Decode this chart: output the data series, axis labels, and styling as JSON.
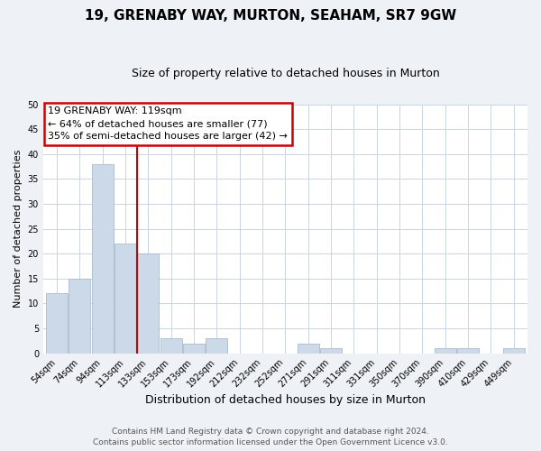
{
  "title": "19, GRENABY WAY, MURTON, SEAHAM, SR7 9GW",
  "subtitle": "Size of property relative to detached houses in Murton",
  "xlabel": "Distribution of detached houses by size in Murton",
  "ylabel": "Number of detached properties",
  "bar_labels": [
    "54sqm",
    "74sqm",
    "94sqm",
    "113sqm",
    "133sqm",
    "153sqm",
    "173sqm",
    "192sqm",
    "212sqm",
    "232sqm",
    "252sqm",
    "271sqm",
    "291sqm",
    "311sqm",
    "331sqm",
    "350sqm",
    "370sqm",
    "390sqm",
    "410sqm",
    "429sqm",
    "449sqm"
  ],
  "bar_values": [
    12,
    15,
    38,
    22,
    20,
    3,
    2,
    3,
    0,
    0,
    0,
    2,
    1,
    0,
    0,
    0,
    0,
    1,
    1,
    0,
    1
  ],
  "bar_color": "#ccd9e8",
  "bar_edge_color": "#aabccc",
  "vline_color": "#cc0000",
  "vline_x_index": 3.5,
  "ylim": [
    0,
    50
  ],
  "yticks": [
    0,
    5,
    10,
    15,
    20,
    25,
    30,
    35,
    40,
    45,
    50
  ],
  "annotation_title": "19 GRENABY WAY: 119sqm",
  "annotation_line1": "← 64% of detached houses are smaller (77)",
  "annotation_line2": "35% of semi-detached houses are larger (42) →",
  "annotation_box_color": "#ffffff",
  "annotation_box_edge": "#cc0000",
  "footer_line1": "Contains HM Land Registry data © Crown copyright and database right 2024.",
  "footer_line2": "Contains public sector information licensed under the Open Government Licence v3.0.",
  "background_color": "#eef2f7",
  "plot_bg_color": "#ffffff",
  "grid_color": "#c8d4e0"
}
